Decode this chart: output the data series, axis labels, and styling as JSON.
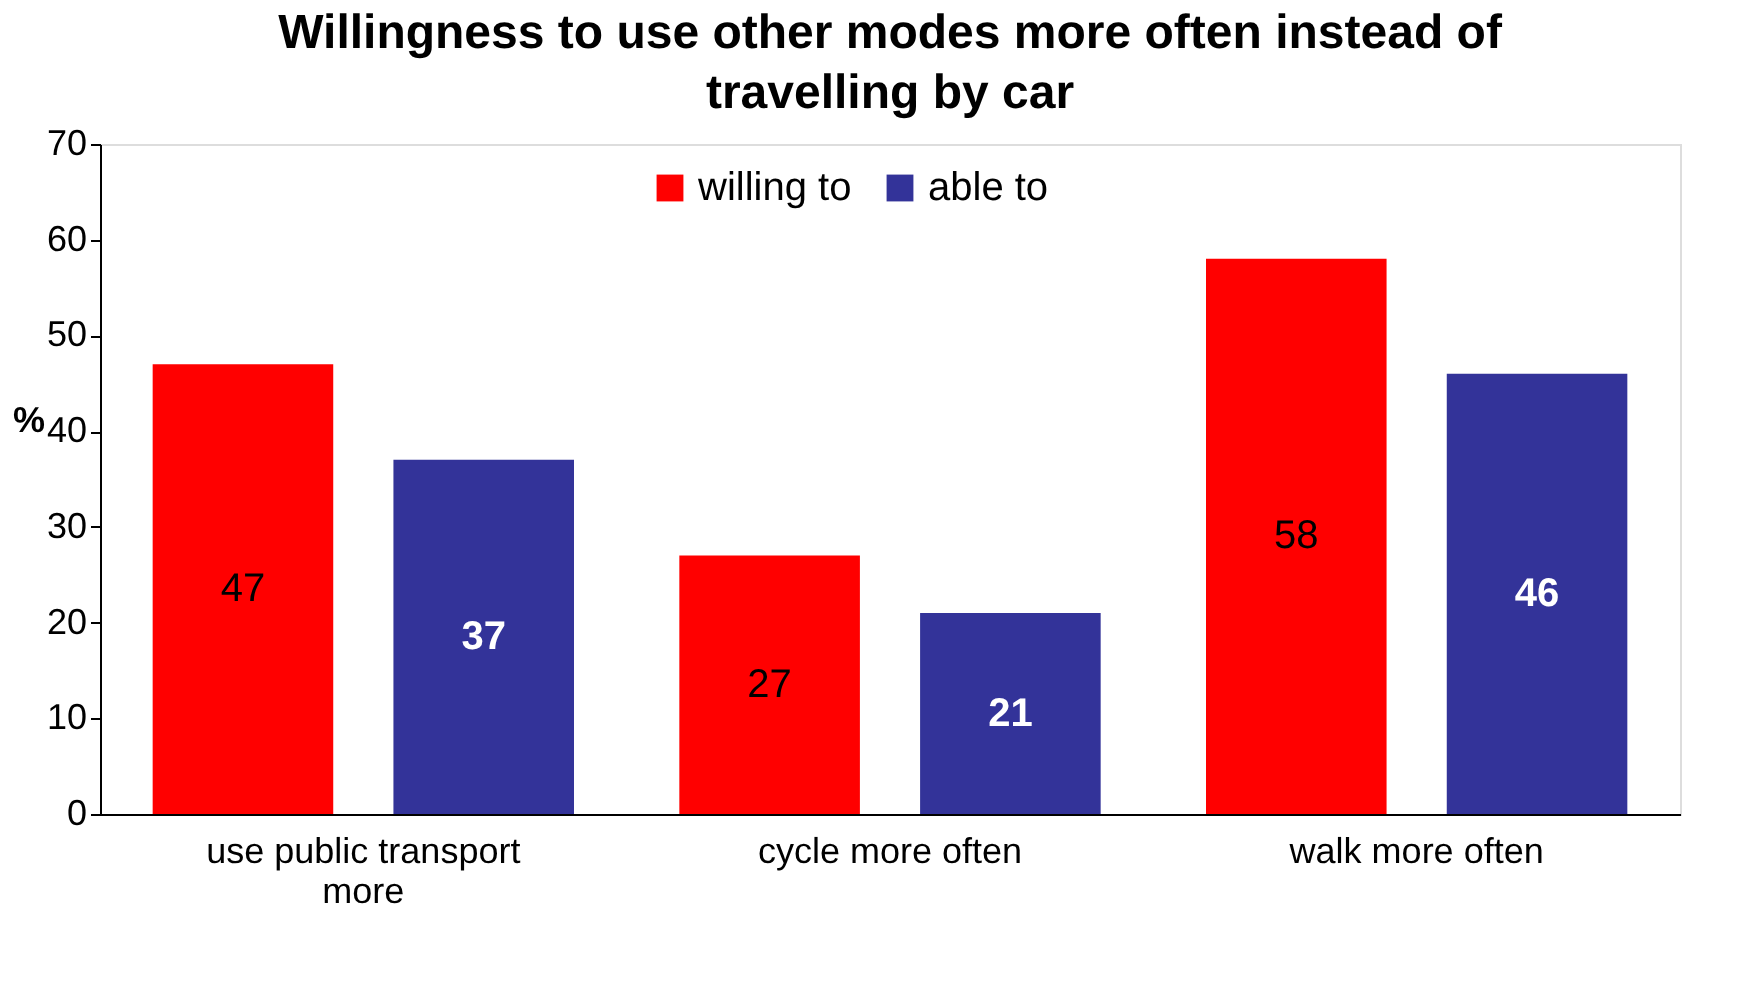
{
  "chart_data": {
    "type": "bar",
    "title": "Willingness to use other modes more often instead of travelling by car",
    "categories": [
      "use public transport more",
      "cycle more often",
      "walk more often"
    ],
    "series": [
      {
        "name": "willing to",
        "color": "#ff0000",
        "values": [
          47,
          27,
          58
        ]
      },
      {
        "name": "able to",
        "color": "#333399",
        "values": [
          37,
          21,
          46
        ]
      }
    ],
    "ylabel": "%",
    "ylim": [
      0,
      70
    ],
    "yticks": [
      0,
      10,
      20,
      30,
      40,
      50,
      60,
      70
    ],
    "data_labels": true,
    "grid": false,
    "legend": "top"
  }
}
